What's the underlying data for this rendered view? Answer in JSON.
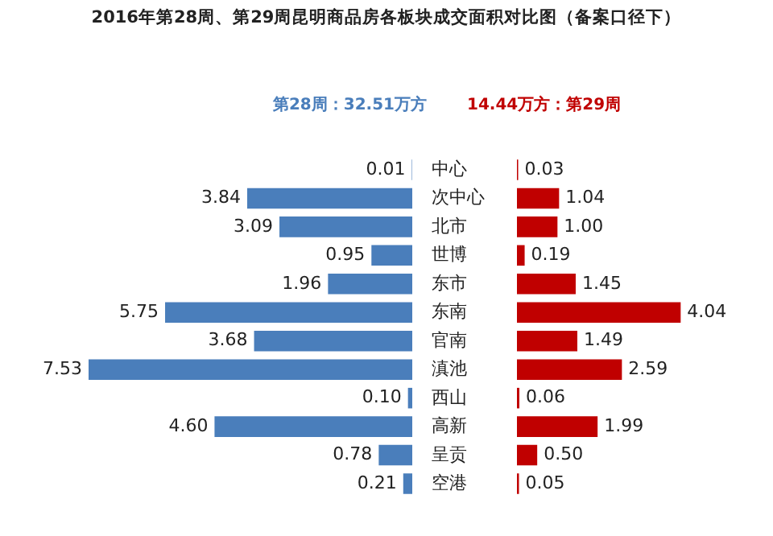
{
  "chart_data": [
    {
      "type": "bar",
      "orientation": "horizontal",
      "title": "2016年第28周、第29周昆明商品房各板块成交面积对比图（备案口径下）",
      "legend": "top",
      "categories": [
        "中心",
        "次中心",
        "北市",
        "世博",
        "东市",
        "东南",
        "官南",
        "滇池",
        "西山",
        "高新",
        "呈贡",
        "空港"
      ],
      "series": [
        {
          "name": "第28周：32.51万方",
          "color": "#4a7ebb",
          "values": [
            0.01,
            3.84,
            3.09,
            0.95,
            1.96,
            5.75,
            3.68,
            7.53,
            0.1,
            4.6,
            0.78,
            0.21
          ],
          "value_labels": [
            "0.01",
            "3.84",
            "3.09",
            "0.95",
            "1.96",
            "5.75",
            "3.68",
            "7.53",
            "0.10",
            "4.60",
            "0.78",
            "0.21"
          ]
        }
      ]
    },
    {
      "type": "bar",
      "orientation": "horizontal",
      "legend": "top",
      "categories": [
        null,
        null,
        null,
        null,
        null,
        null,
        null,
        null,
        null,
        null,
        null,
        null
      ],
      "series": [
        {
          "name": "14.44万方：第29周",
          "color": "#c00000",
          "values": [
            0.03,
            1.04,
            1.0,
            0.19,
            1.45,
            4.04,
            1.49,
            2.59,
            0.06,
            1.99,
            0.5,
            0.05
          ],
          "value_labels": [
            "0.03",
            "1.04",
            "1.00",
            "0.19",
            "1.45",
            "4.04",
            "1.49",
            "2.59",
            "0.06",
            "1.99",
            "0.50",
            "0.05"
          ]
        }
      ]
    }
  ]
}
